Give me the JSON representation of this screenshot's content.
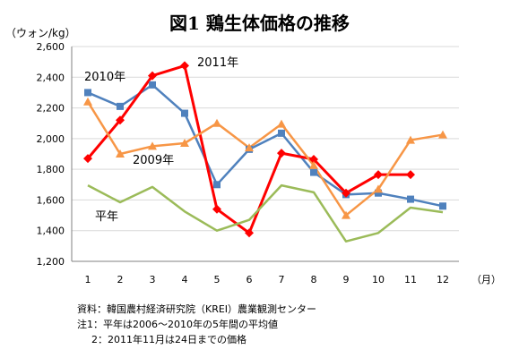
{
  "chart_data": {
    "type": "line",
    "title": "図1 鶏生体価格の推移",
    "ylabel": "（ウォン/kg）",
    "xunit": "（月）",
    "ylim": [
      1200,
      2600
    ],
    "yticks": [
      "1,200",
      "1,400",
      "1,600",
      "1,800",
      "2,000",
      "2,200",
      "2,400",
      "2,600"
    ],
    "categories": [
      "1",
      "2",
      "3",
      "4",
      "5",
      "6",
      "7",
      "8",
      "9",
      "10",
      "11",
      "12"
    ],
    "series": [
      {
        "name": "2010年",
        "color": "#4f81bd",
        "marker": "square",
        "values": [
          2300,
          2210,
          2350,
          2165,
          1700,
          1930,
          2035,
          1780,
          1635,
          1645,
          1605,
          1560
        ]
      },
      {
        "name": "2011年",
        "color": "#ff0000",
        "marker": "diamond",
        "values": [
          1870,
          2120,
          2410,
          2475,
          1540,
          1385,
          1905,
          1865,
          1645,
          1765,
          1765,
          null
        ]
      },
      {
        "name": "2009年",
        "color": "#f79646",
        "marker": "triangle",
        "values": [
          2240,
          1900,
          1950,
          1970,
          2100,
          1940,
          2095,
          1825,
          1500,
          1670,
          1990,
          2025
        ]
      },
      {
        "name": "平年",
        "color": "#9bbb59",
        "marker": "none",
        "values": [
          1695,
          1585,
          1685,
          1525,
          1400,
          1470,
          1695,
          1650,
          1330,
          1385,
          1550,
          1520
        ]
      }
    ]
  },
  "notes": {
    "source": "資料：韓国農村経済研究院（KREI）農業観測センター",
    "note1": "注1：平年は2006～2010年の5年間の平均値",
    "note2": "2：2011年11月は24日までの価格"
  }
}
